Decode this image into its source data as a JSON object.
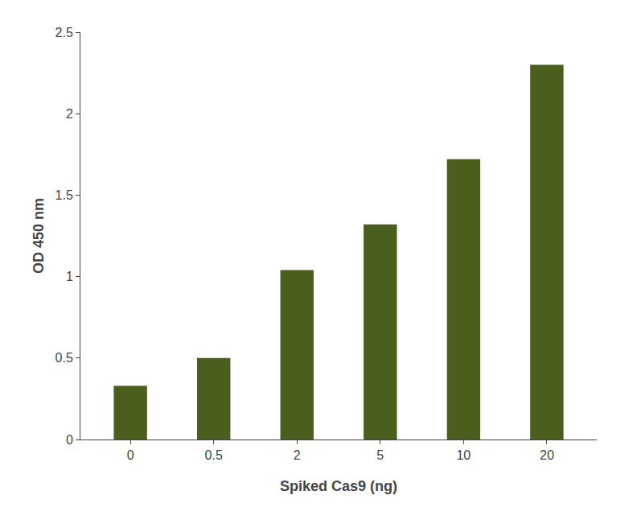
{
  "chart_data": {
    "type": "bar",
    "xlabel": "Spiked Cas9 (ng)",
    "ylabel": "OD 450 nm",
    "categories": [
      "0",
      "0.5",
      "2",
      "5",
      "10",
      "20"
    ],
    "values": [
      0.33,
      0.5,
      1.04,
      1.32,
      1.72,
      2.3
    ],
    "color": "#4a5e1e",
    "ylim": [
      0,
      2.5
    ],
    "yticks": [
      0,
      0.5,
      1,
      1.5,
      2,
      2.5
    ],
    "grid": false
  }
}
